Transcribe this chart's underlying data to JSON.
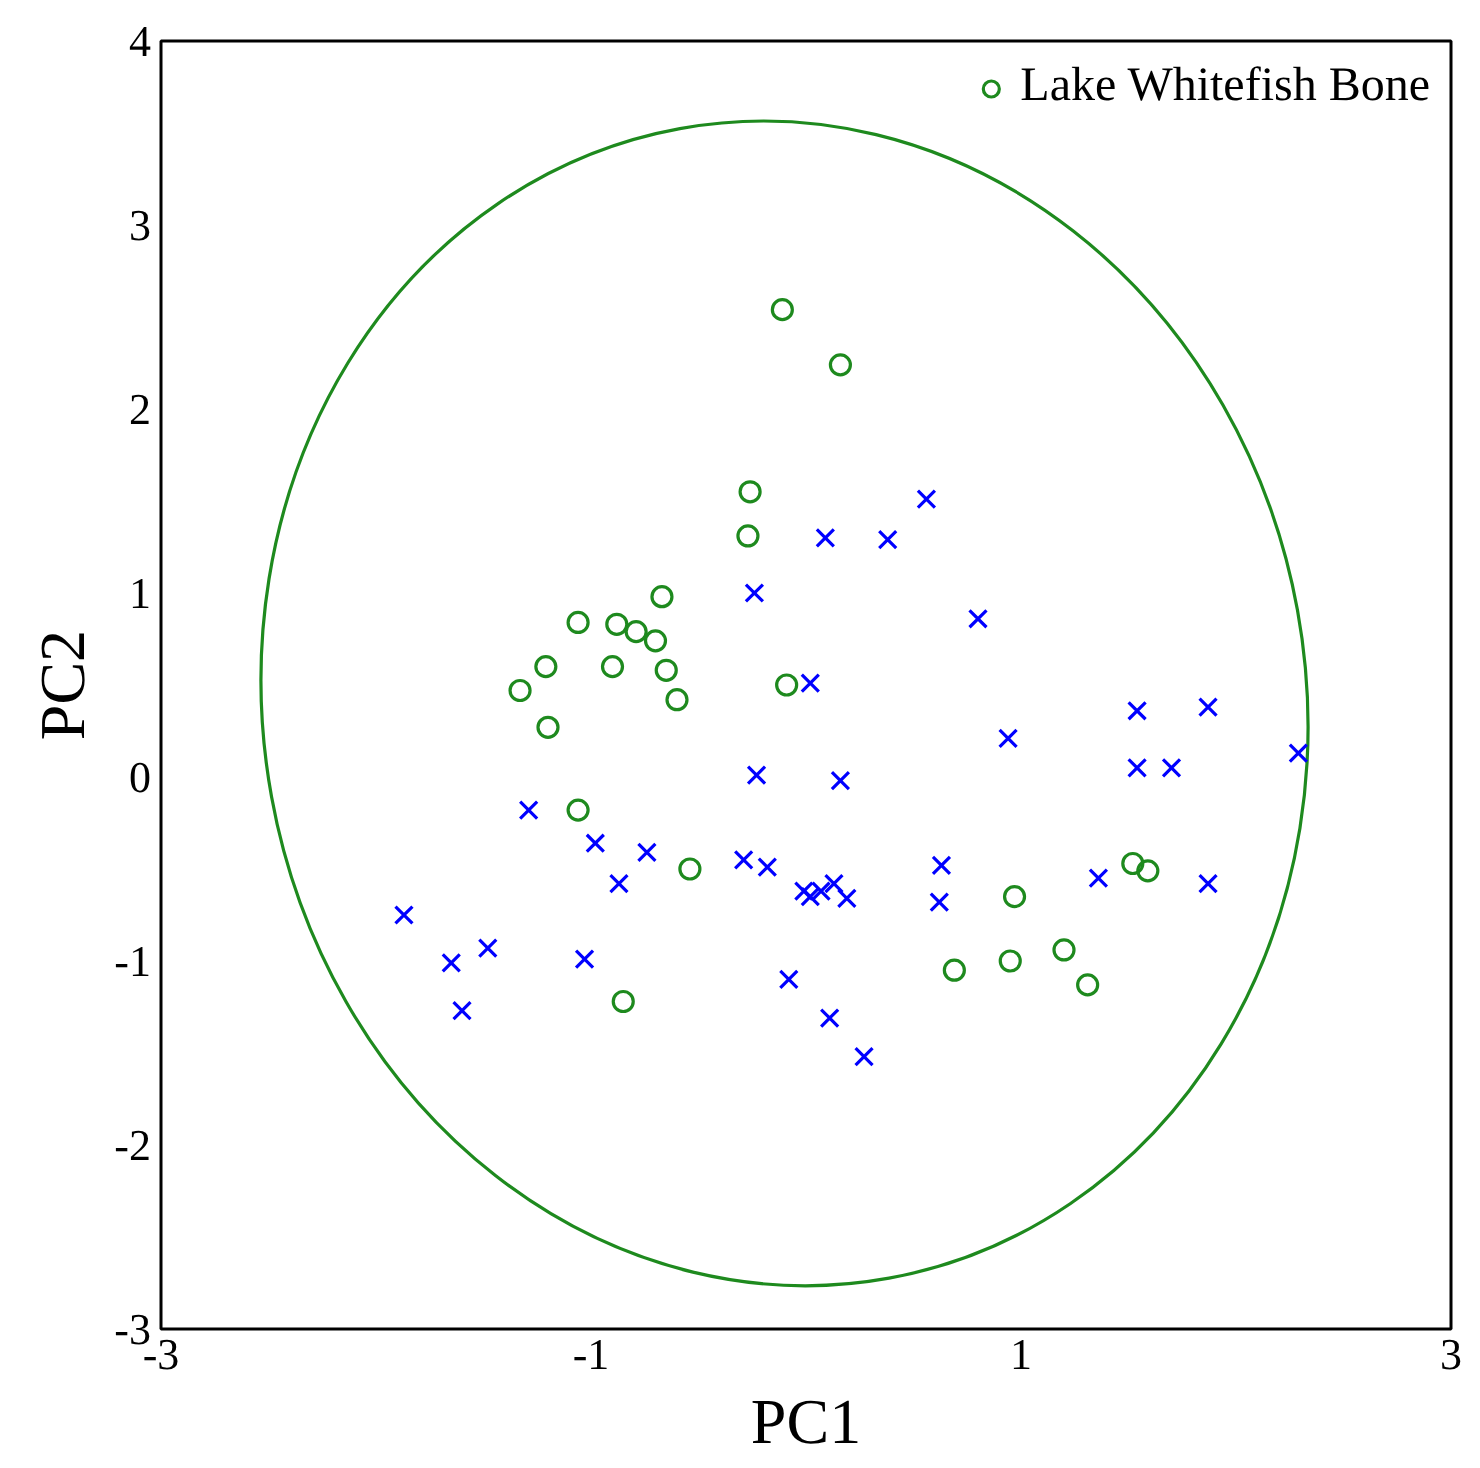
{
  "chart_data": {
    "type": "scatter",
    "xlabel": "PC1",
    "ylabel": "PC2",
    "xlim": [
      -3,
      3
    ],
    "ylim": [
      -3,
      4
    ],
    "xticks": [
      -3,
      -1,
      1,
      3
    ],
    "yticks": [
      -3,
      -2,
      -1,
      0,
      1,
      2,
      3,
      4
    ],
    "grid": false,
    "legend": "top right",
    "series": [
      {
        "name": "Lake Whitefish Bone",
        "color": "#1e8a1e",
        "marker": "circle",
        "x": [
          -0.11,
          0.16,
          -0.26,
          -0.27,
          -0.67,
          -1.06,
          -0.88,
          -0.79,
          -0.7,
          -1.21,
          -0.9,
          -0.65,
          -1.33,
          -0.09,
          -0.6,
          -1.2,
          -1.06,
          -0.54,
          -0.85,
          1.52,
          1.59,
          0.97,
          1.2,
          0.95,
          0.69,
          1.31
        ],
        "values": [
          2.54,
          2.24,
          1.55,
          1.31,
          0.98,
          0.84,
          0.83,
          0.79,
          0.74,
          0.6,
          0.6,
          0.58,
          0.47,
          0.5,
          0.42,
          0.27,
          -0.18,
          -0.5,
          -1.22,
          -0.47,
          -0.51,
          -0.65,
          -0.94,
          -1.0,
          -1.05,
          -1.13
        ]
      },
      {
        "color": "#0000ff",
        "marker": "cross",
        "x": [
          0.56,
          0.09,
          0.38,
          -0.24,
          0.8,
          0.02,
          1.87,
          1.54,
          0.94,
          2.29,
          -0.23,
          1.54,
          1.7,
          0.16,
          -1.29,
          -0.98,
          -0.74,
          -0.29,
          -0.18,
          -0.87,
          0.63,
          1.36,
          1.87,
          -0.01,
          0.13,
          0.07,
          0.02,
          0.19,
          0.62,
          -1.87,
          -1.48,
          -1.65,
          -1.03,
          -0.08,
          -1.6,
          0.11,
          0.27
        ],
        "values": [
          1.51,
          1.3,
          1.29,
          1.0,
          0.86,
          0.51,
          0.38,
          0.36,
          0.21,
          0.13,
          0.01,
          0.05,
          0.05,
          -0.02,
          -0.18,
          -0.36,
          -0.41,
          -0.45,
          -0.49,
          -0.58,
          -0.48,
          -0.55,
          -0.58,
          -0.62,
          -0.58,
          -0.62,
          -0.65,
          -0.66,
          -0.68,
          -0.75,
          -0.93,
          -1.01,
          -0.99,
          -1.1,
          -1.27,
          -1.31,
          -1.52
        ]
      }
    ]
  }
}
